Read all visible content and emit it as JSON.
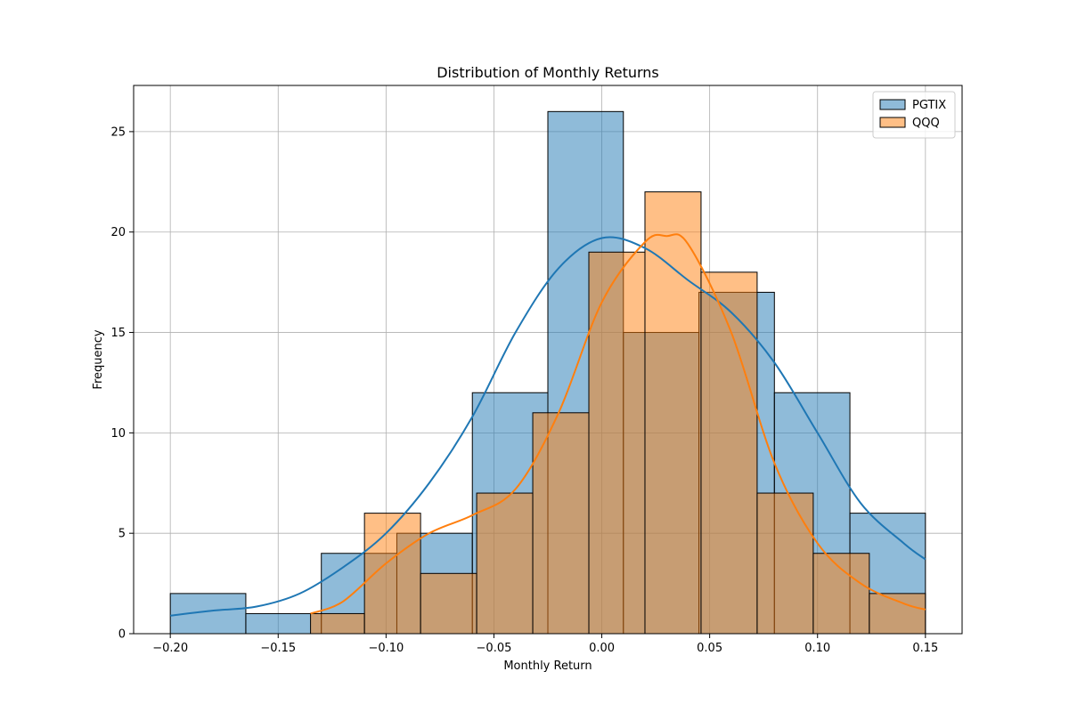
{
  "chart_data": {
    "type": "histogram",
    "title": "Distribution of Monthly Returns",
    "xlabel": "Monthly Return",
    "ylabel": "Frequency",
    "xlim": [
      -0.217,
      0.167
    ],
    "ylim": [
      0,
      27.3
    ],
    "xticks": [
      -0.2,
      -0.15,
      -0.1,
      -0.05,
      0.0,
      0.05,
      0.1,
      0.15
    ],
    "xtick_labels": [
      "−0.20",
      "−0.15",
      "−0.10",
      "−0.05",
      "0.00",
      "0.05",
      "0.10",
      "0.15"
    ],
    "yticks": [
      0,
      5,
      10,
      15,
      20,
      25
    ],
    "ytick_labels": [
      "0",
      "5",
      "10",
      "15",
      "20",
      "25"
    ],
    "grid": true,
    "legend_position": "top-right",
    "series": [
      {
        "name": "PGTIX",
        "fill_color": "#1f77b4",
        "line_color": "#1f77b4",
        "bins": [
          {
            "x0": -0.2,
            "x1": -0.165,
            "count": 2
          },
          {
            "x0": -0.165,
            "x1": -0.13,
            "count": 1
          },
          {
            "x0": -0.13,
            "x1": -0.095,
            "count": 4
          },
          {
            "x0": -0.095,
            "x1": -0.06,
            "count": 5
          },
          {
            "x0": -0.06,
            "x1": -0.025,
            "count": 12
          },
          {
            "x0": -0.025,
            "x1": 0.01,
            "count": 26
          },
          {
            "x0": 0.01,
            "x1": 0.045,
            "count": 15
          },
          {
            "x0": 0.045,
            "x1": 0.08,
            "count": 17
          },
          {
            "x0": 0.08,
            "x1": 0.115,
            "count": 12
          },
          {
            "x0": 0.115,
            "x1": 0.15,
            "count": 6
          }
        ],
        "kde": {
          "x": [
            -0.2,
            -0.18,
            -0.16,
            -0.14,
            -0.12,
            -0.1,
            -0.08,
            -0.06,
            -0.04,
            -0.02,
            0.0,
            0.02,
            0.04,
            0.06,
            0.08,
            0.1,
            0.12,
            0.14,
            0.15
          ],
          "y": [
            0.9,
            1.15,
            1.35,
            2.0,
            3.3,
            5.0,
            7.5,
            10.8,
            15.0,
            18.2,
            19.7,
            19.2,
            17.6,
            16.0,
            13.5,
            10.0,
            6.5,
            4.5,
            3.7
          ]
        }
      },
      {
        "name": "QQQ",
        "fill_color": "#ff7f0e",
        "line_color": "#ff7f0e",
        "bins": [
          {
            "x0": -0.135,
            "x1": -0.11,
            "count": 1
          },
          {
            "x0": -0.11,
            "x1": -0.084,
            "count": 6
          },
          {
            "x0": -0.084,
            "x1": -0.058,
            "count": 3
          },
          {
            "x0": -0.058,
            "x1": -0.032,
            "count": 7
          },
          {
            "x0": -0.032,
            "x1": -0.006,
            "count": 11
          },
          {
            "x0": -0.006,
            "x1": 0.02,
            "count": 19
          },
          {
            "x0": 0.02,
            "x1": 0.046,
            "count": 22
          },
          {
            "x0": 0.046,
            "x1": 0.072,
            "count": 18
          },
          {
            "x0": 0.072,
            "x1": 0.098,
            "count": 7
          },
          {
            "x0": 0.098,
            "x1": 0.124,
            "count": 4
          },
          {
            "x0": 0.124,
            "x1": 0.15,
            "count": 2
          }
        ],
        "kde": {
          "x": [
            -0.135,
            -0.12,
            -0.1,
            -0.08,
            -0.06,
            -0.04,
            -0.02,
            0.0,
            0.02,
            0.03,
            0.04,
            0.06,
            0.08,
            0.1,
            0.12,
            0.14,
            0.15
          ],
          "y": [
            1.0,
            1.6,
            3.5,
            5.0,
            5.9,
            7.2,
            11.0,
            16.5,
            19.5,
            19.8,
            19.4,
            15.0,
            8.5,
            4.5,
            2.5,
            1.5,
            1.2
          ]
        }
      }
    ]
  }
}
